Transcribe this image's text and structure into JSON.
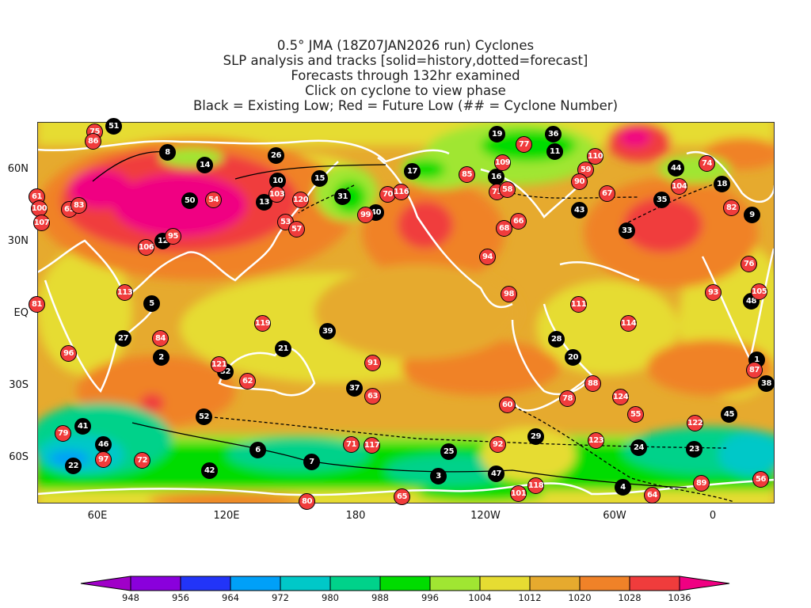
{
  "title_lines": [
    "0.5° JMA (18Z07JAN2026 run) Cyclones",
    "SLP analysis and tracks [solid=history,dotted=forecast]",
    "Forecasts through 132hr examined",
    "Click on cyclone to view phase",
    "Black = Existing Low; Red = Future Low (## = Cyclone Number)"
  ],
  "lat_labels": [
    "60N",
    "30N",
    "EQ",
    "30S",
    "60S"
  ],
  "lon_labels": [
    "60E",
    "120E",
    "180",
    "120W",
    "60W",
    "0"
  ],
  "colorbar": {
    "levels": [
      "948",
      "956",
      "964",
      "972",
      "980",
      "988",
      "996",
      "1004",
      "1012",
      "1020",
      "1028",
      "1036"
    ],
    "colors": [
      "#a000c8",
      "#8a00dc",
      "#2234f8",
      "#00a0f8",
      "#00c8c8",
      "#00d28a",
      "#00dc00",
      "#a0e632",
      "#e6dc32",
      "#e6aa2e",
      "#f08228",
      "#f03c3c",
      "#f00082"
    ]
  },
  "colors": {
    "existing": "#000000",
    "future": "#f03c3c",
    "coast": "#ffffff"
  },
  "cyclones": [
    {
      "num": "51",
      "type": "existing"
    },
    {
      "num": "8",
      "type": "existing"
    },
    {
      "num": "14",
      "type": "existing"
    },
    {
      "num": "26",
      "type": "existing"
    },
    {
      "num": "10",
      "type": "existing"
    },
    {
      "num": "15",
      "type": "existing"
    },
    {
      "num": "50",
      "type": "existing"
    },
    {
      "num": "13",
      "type": "existing"
    },
    {
      "num": "31",
      "type": "existing"
    },
    {
      "num": "40",
      "type": "existing"
    },
    {
      "num": "17",
      "type": "existing"
    },
    {
      "num": "19",
      "type": "existing"
    },
    {
      "num": "36",
      "type": "existing"
    },
    {
      "num": "11",
      "type": "existing"
    },
    {
      "num": "16",
      "type": "existing"
    },
    {
      "num": "43",
      "type": "existing"
    },
    {
      "num": "33",
      "type": "existing"
    },
    {
      "num": "35",
      "type": "existing"
    },
    {
      "num": "44",
      "type": "existing"
    },
    {
      "num": "18",
      "type": "existing"
    },
    {
      "num": "9",
      "type": "existing"
    },
    {
      "num": "48",
      "type": "existing"
    },
    {
      "num": "12",
      "type": "existing"
    },
    {
      "num": "5",
      "type": "existing"
    },
    {
      "num": "27",
      "type": "existing"
    },
    {
      "num": "2",
      "type": "existing"
    },
    {
      "num": "32",
      "type": "existing"
    },
    {
      "num": "21",
      "type": "existing"
    },
    {
      "num": "39",
      "type": "existing"
    },
    {
      "num": "37",
      "type": "existing"
    },
    {
      "num": "52",
      "type": "existing"
    },
    {
      "num": "41",
      "type": "existing"
    },
    {
      "num": "46",
      "type": "existing"
    },
    {
      "num": "22",
      "type": "existing"
    },
    {
      "num": "42",
      "type": "existing"
    },
    {
      "num": "6",
      "type": "existing"
    },
    {
      "num": "7",
      "type": "existing"
    },
    {
      "num": "28",
      "type": "existing"
    },
    {
      "num": "20",
      "type": "existing"
    },
    {
      "num": "1",
      "type": "existing"
    },
    {
      "num": "38",
      "type": "existing"
    },
    {
      "num": "45",
      "type": "existing"
    },
    {
      "num": "29",
      "type": "existing"
    },
    {
      "num": "25",
      "type": "existing"
    },
    {
      "num": "3",
      "type": "existing"
    },
    {
      "num": "47",
      "type": "existing"
    },
    {
      "num": "24",
      "type": "existing"
    },
    {
      "num": "23",
      "type": "existing"
    },
    {
      "num": "4",
      "type": "existing"
    },
    {
      "num": "75",
      "type": "future"
    },
    {
      "num": "86",
      "type": "future"
    },
    {
      "num": "61",
      "type": "future"
    },
    {
      "num": "100",
      "type": "future"
    },
    {
      "num": "107",
      "type": "future"
    },
    {
      "num": "65",
      "type": "future"
    },
    {
      "num": "83",
      "type": "future"
    },
    {
      "num": "54",
      "type": "future"
    },
    {
      "num": "103",
      "type": "future"
    },
    {
      "num": "120",
      "type": "future"
    },
    {
      "num": "53",
      "type": "future"
    },
    {
      "num": "57",
      "type": "future"
    },
    {
      "num": "106",
      "type": "future"
    },
    {
      "num": "95",
      "type": "future"
    },
    {
      "num": "70",
      "type": "future"
    },
    {
      "num": "116",
      "type": "future"
    },
    {
      "num": "99",
      "type": "future"
    },
    {
      "num": "77",
      "type": "future"
    },
    {
      "num": "110",
      "type": "future"
    },
    {
      "num": "109",
      "type": "future"
    },
    {
      "num": "85",
      "type": "future"
    },
    {
      "num": "59",
      "type": "future"
    },
    {
      "num": "90",
      "type": "future"
    },
    {
      "num": "73",
      "type": "future"
    },
    {
      "num": "58",
      "type": "future"
    },
    {
      "num": "68",
      "type": "future"
    },
    {
      "num": "66",
      "type": "future"
    },
    {
      "num": "67",
      "type": "future"
    },
    {
      "num": "74",
      "type": "future"
    },
    {
      "num": "104",
      "type": "future"
    },
    {
      "num": "82",
      "type": "future"
    },
    {
      "num": "76",
      "type": "future"
    },
    {
      "num": "93",
      "type": "future"
    },
    {
      "num": "105",
      "type": "future"
    },
    {
      "num": "94",
      "type": "future"
    },
    {
      "num": "98",
      "type": "future"
    },
    {
      "num": "111",
      "type": "future"
    },
    {
      "num": "114",
      "type": "future"
    },
    {
      "num": "113",
      "type": "future"
    },
    {
      "num": "81",
      "type": "future"
    },
    {
      "num": "96",
      "type": "future"
    },
    {
      "num": "84",
      "type": "future"
    },
    {
      "num": "119",
      "type": "future"
    },
    {
      "num": "121",
      "type": "future"
    },
    {
      "num": "62",
      "type": "future"
    },
    {
      "num": "91",
      "type": "future"
    },
    {
      "num": "63",
      "type": "future"
    },
    {
      "num": "79",
      "type": "future"
    },
    {
      "num": "97",
      "type": "future"
    },
    {
      "num": "72",
      "type": "future"
    },
    {
      "num": "71",
      "type": "future"
    },
    {
      "num": "117",
      "type": "future"
    },
    {
      "num": "80",
      "type": "future"
    },
    {
      "num": "65",
      "type": "future"
    },
    {
      "num": "60",
      "type": "future"
    },
    {
      "num": "92",
      "type": "future"
    },
    {
      "num": "78",
      "type": "future"
    },
    {
      "num": "88",
      "type": "future"
    },
    {
      "num": "124",
      "type": "future"
    },
    {
      "num": "55",
      "type": "future"
    },
    {
      "num": "122",
      "type": "future"
    },
    {
      "num": "123",
      "type": "future"
    },
    {
      "num": "118",
      "type": "future"
    },
    {
      "num": "101",
      "type": "future"
    },
    {
      "num": "64",
      "type": "future"
    },
    {
      "num": "89",
      "type": "future"
    },
    {
      "num": "56",
      "type": "future"
    },
    {
      "num": "87",
      "type": "future"
    }
  ]
}
